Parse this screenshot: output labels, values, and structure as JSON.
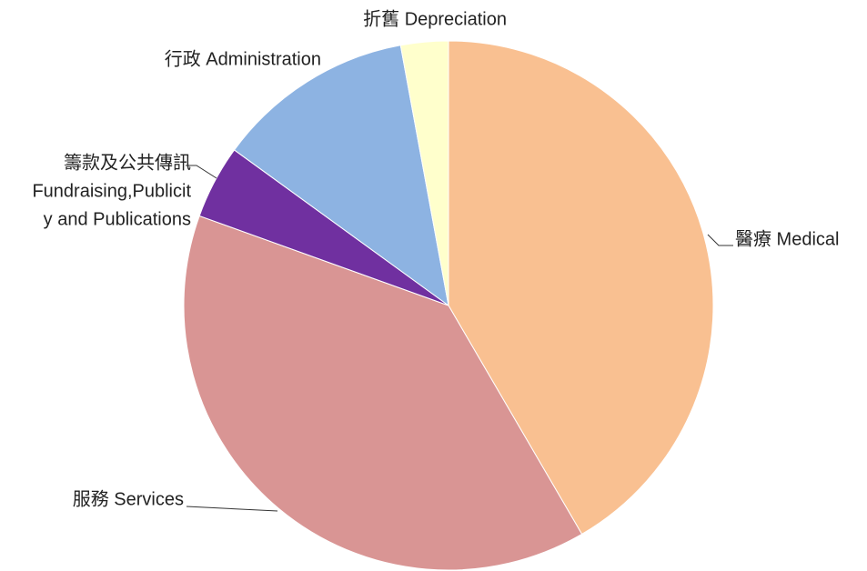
{
  "chart_data": {
    "type": "pie",
    "categories": [
      "醫療 Medical",
      "服務 Services",
      [
        "籌款及公共傳訊",
        "Fundraising,Publicit",
        "y and Publications"
      ],
      "行政 Administration",
      "折舊 Depreciation"
    ],
    "values": [
      41.6,
      38.9,
      4.5,
      12.1,
      2.9
    ],
    "colors": [
      "#f9c091",
      "#d99594",
      "#7030a0",
      "#8db3e2",
      "#ffffcc"
    ]
  }
}
